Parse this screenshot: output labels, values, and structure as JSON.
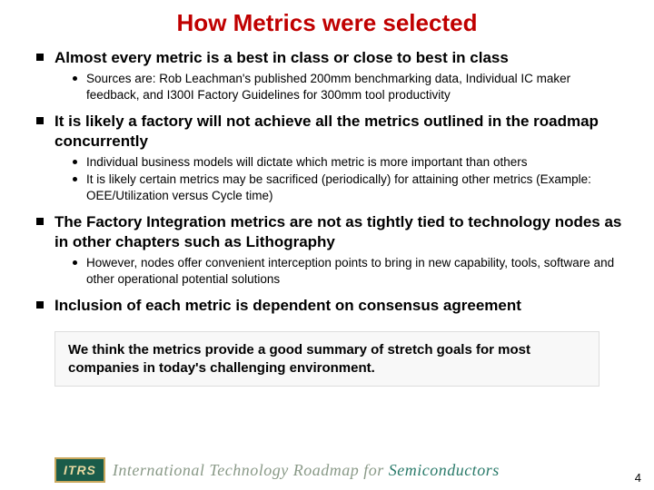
{
  "title": "How Metrics were selected",
  "bullets": [
    {
      "text": "Almost every metric is a best in class or close to best in class",
      "subs": [
        "Sources are: Rob Leachman's published 200mm benchmarking data, Individual IC maker feedback, and I300I Factory Guidelines for 300mm tool productivity"
      ]
    },
    {
      "text": "It is likely a factory will not achieve all the metrics outlined in the roadmap concurrently",
      "subs": [
        "Individual business models will dictate which metric is more important than others",
        "It is likely certain metrics may be sacrificed (periodically) for attaining other metrics (Example: OEE/Utilization versus Cycle time)"
      ]
    },
    {
      "text": "The Factory Integration metrics are not as tightly tied to technology nodes as in other chapters such as Lithography",
      "subs": [
        "However, nodes offer convenient interception points to bring in new capability, tools, software and other operational potential solutions"
      ]
    },
    {
      "text": "Inclusion of each metric is dependent on consensus agreement",
      "subs": []
    }
  ],
  "callout": "We think the metrics provide a good summary of stretch goals for most companies in today's challenging environment.",
  "footer": {
    "badge": "ITRS",
    "org_prefix": "International Technology Roadmap for ",
    "org_suffix": "Semiconductors"
  },
  "page_number": "4"
}
